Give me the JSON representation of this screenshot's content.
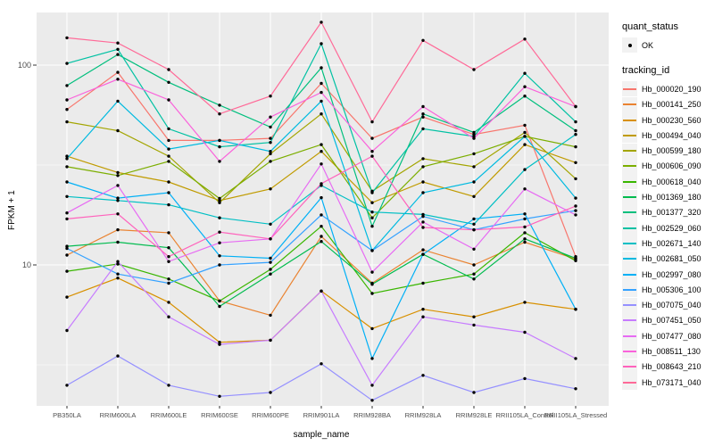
{
  "axes": {
    "x_title": "sample_name",
    "y_title": "FPKM + 1",
    "y_ticks": [
      10,
      100
    ],
    "panel_bg": "#EBEBEB",
    "grid_color": "#FFFFFF"
  },
  "legend": {
    "quant_status_title": "quant_status",
    "quant_status_items": [
      {
        "label": "OK",
        "marker": "point"
      }
    ],
    "tracking_id_title": "tracking_id"
  },
  "chart_data": {
    "type": "line",
    "title": "",
    "xlabel": "sample_name",
    "ylabel": "FPKM + 1",
    "y_scale": "log10",
    "ylim": [
      1.9,
      190
    ],
    "grid": true,
    "legend_position": "right",
    "point_marker": "black-dot",
    "categories": [
      "PB350LA",
      "RRIM600LA",
      "RRIM600LE",
      "RRIM600SE",
      "RRIM600PE",
      "RRIM901LA",
      "RRIM928BA",
      "RRIM928LA",
      "RRIM928LE",
      "RRII105LA_Control",
      "RRII105LA_Stressed"
    ],
    "series": [
      {
        "name": "Hb_000020_190",
        "color": "#F8766D",
        "values": [
          60,
          92,
          42,
          42,
          43,
          81,
          43,
          55,
          45,
          50,
          11
        ]
      },
      {
        "name": "Hb_000141_250",
        "color": "#EA8331",
        "values": [
          11.2,
          15,
          14.5,
          6.6,
          5.6,
          13.9,
          8.1,
          11.9,
          10,
          13,
          10.7
        ]
      },
      {
        "name": "Hb_000230_560",
        "color": "#D89000",
        "values": [
          6.9,
          8.6,
          6.5,
          4.1,
          4.2,
          7.4,
          4.8,
          6.0,
          5.5,
          6.5,
          6.0
        ]
      },
      {
        "name": "Hb_000494_040",
        "color": "#C09B00",
        "values": [
          35,
          29,
          26,
          21,
          24,
          37,
          20.5,
          26,
          22,
          40,
          32.5
        ]
      },
      {
        "name": "Hb_000599_180",
        "color": "#A3A500",
        "values": [
          52,
          47,
          35,
          20.5,
          36,
          57,
          23.4,
          34,
          31,
          46,
          27
        ]
      },
      {
        "name": "Hb_000606_090",
        "color": "#7CAE00",
        "values": [
          31,
          28,
          33,
          21.5,
          33,
          40,
          17.2,
          31,
          36,
          44,
          39
        ]
      },
      {
        "name": "Hb_000618_040",
        "color": "#39B600",
        "values": [
          9.3,
          10.1,
          8.5,
          6.6,
          9.5,
          15.6,
          7.2,
          8.1,
          9,
          14.5,
          10.5
        ]
      },
      {
        "name": "Hb_001369_180",
        "color": "#00BB4E",
        "values": [
          12.4,
          13,
          12.2,
          6.2,
          9,
          13.1,
          8.0,
          11.3,
          8.5,
          13.5,
          10.8
        ]
      },
      {
        "name": "Hb_001377_320",
        "color": "#00BF7D",
        "values": [
          79,
          113,
          82,
          63,
          49,
          97,
          15.6,
          57,
          46,
          70,
          47
        ]
      },
      {
        "name": "Hb_002529_060",
        "color": "#00C1A3",
        "values": [
          102,
          120,
          48,
          39,
          41,
          128,
          23,
          48,
          44,
          91,
          52
        ]
      },
      {
        "name": "Hb_002671_140",
        "color": "#00BFC4",
        "values": [
          22,
          21,
          20,
          17.2,
          16,
          25,
          18.4,
          17.9,
          16,
          30,
          45
        ]
      },
      {
        "name": "Hb_002681_050",
        "color": "#00BAE0",
        "values": [
          34,
          66,
          38,
          42,
          37,
          66,
          11.8,
          23,
          26,
          44,
          21.6
        ]
      },
      {
        "name": "Hb_002997_080",
        "color": "#00B0F6",
        "values": [
          26,
          21.6,
          23,
          11.1,
          10.8,
          21.7,
          3.4,
          11.3,
          17,
          18,
          6.0
        ]
      },
      {
        "name": "Hb_005306_100",
        "color": "#35A2FF",
        "values": [
          12.1,
          9,
          8.1,
          10,
          10.3,
          17.8,
          11.8,
          17.5,
          15,
          17,
          18.7
        ]
      },
      {
        "name": "Hb_007075_040",
        "color": "#9590FF",
        "values": [
          2.5,
          3.5,
          2.5,
          2.2,
          2.3,
          3.2,
          2.1,
          2.8,
          2.3,
          2.7,
          2.4
        ]
      },
      {
        "name": "Hb_007451_050",
        "color": "#C77CFF",
        "values": [
          4.7,
          10.4,
          5.5,
          4.0,
          4.2,
          7.4,
          2.5,
          5.5,
          5.0,
          4.6,
          3.4
        ]
      },
      {
        "name": "Hb_007477_080",
        "color": "#E76BF3",
        "values": [
          18.2,
          25,
          10.4,
          12.9,
          13.5,
          32,
          9.2,
          16.4,
          12,
          24,
          17.8
        ]
      },
      {
        "name": "Hb_008511_130",
        "color": "#FA62DB",
        "values": [
          67,
          85,
          67,
          33,
          55,
          73,
          37,
          62,
          43,
          78,
          62
        ]
      },
      {
        "name": "Hb_008643_210",
        "color": "#FF62BC",
        "values": [
          17,
          18,
          11,
          14.6,
          13.5,
          25.5,
          35,
          15.4,
          15,
          15.5,
          19.7
        ]
      },
      {
        "name": "Hb_073171_040",
        "color": "#FF6A98",
        "values": [
          137,
          129,
          95,
          57,
          70,
          164,
          52,
          133,
          95,
          135,
          62
        ]
      }
    ]
  }
}
